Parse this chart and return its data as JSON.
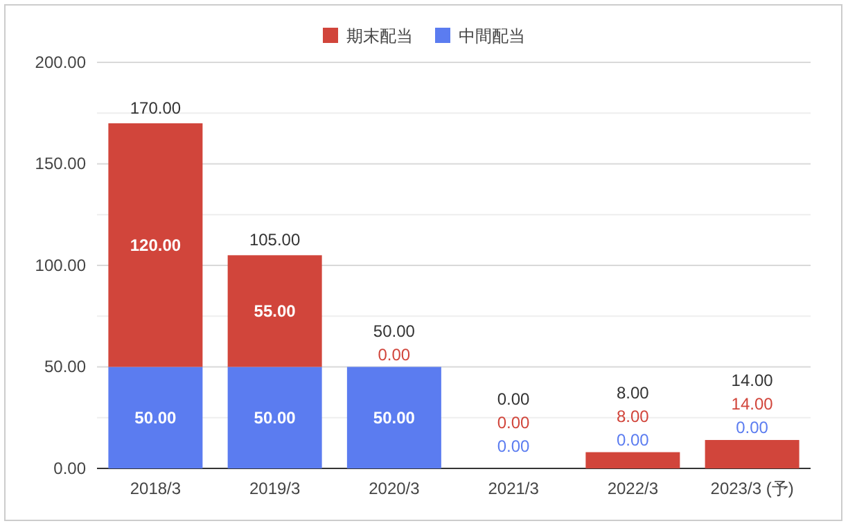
{
  "chart_data": {
    "type": "bar",
    "stacked": true,
    "categories": [
      "2018/3",
      "2019/3",
      "2020/3",
      "2021/3",
      "2022/3",
      "2023/3 (予)"
    ],
    "series": [
      {
        "name": "中間配当",
        "color": "#5b7cf0",
        "values": [
          50,
          50,
          50,
          0,
          0,
          0
        ],
        "value_labels": [
          "50.00",
          "50.00",
          "50.00",
          "0.00",
          "0.00",
          "0.00"
        ]
      },
      {
        "name": "期末配当",
        "color": "#d1453b",
        "values": [
          120,
          55,
          0,
          0,
          8,
          14
        ],
        "value_labels": [
          "120.00",
          "55.00",
          "0.00",
          "0.00",
          "8.00",
          "14.00"
        ]
      }
    ],
    "totals": [
      "170.00",
      "105.00",
      "50.00",
      "0.00",
      "8.00",
      "14.00"
    ],
    "ylim": [
      0,
      200
    ],
    "yticks": [
      {
        "value": 0,
        "label": "0.00"
      },
      {
        "value": 25,
        "label": null
      },
      {
        "value": 50,
        "label": "50.00"
      },
      {
        "value": 75,
        "label": null
      },
      {
        "value": 100,
        "label": "100.00"
      },
      {
        "value": 125,
        "label": null
      },
      {
        "value": 150,
        "label": "150.00"
      },
      {
        "value": 175,
        "label": null
      },
      {
        "value": 200,
        "label": "200.00"
      }
    ],
    "grid": true,
    "legend": "top"
  }
}
